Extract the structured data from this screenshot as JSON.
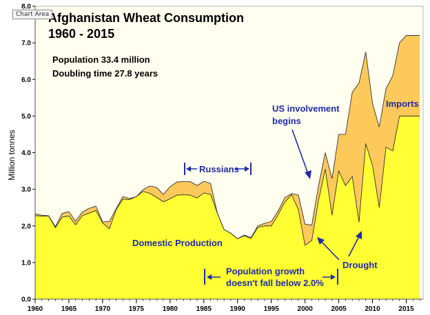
{
  "tooltip": "Chart Area",
  "chart_data": {
    "type": "area",
    "title_line1": "Afghanistan Wheat Consumption",
    "title_line2": "1960 - 2015",
    "stat_population": "Population  33.4 million",
    "stat_doubling": "Doubling time 27.8 years",
    "ylabel": "Million tonnes",
    "xlabel": "",
    "xlim": [
      1960,
      2017.5
    ],
    "ylim": [
      0,
      8
    ],
    "x_ticks": [
      1960,
      1965,
      1970,
      1975,
      1980,
      1985,
      1990,
      1995,
      2000,
      2005,
      2010,
      2015
    ],
    "y_ticks": [
      "0.0",
      "1.0",
      "2.0",
      "3.0",
      "4.0",
      "5.0",
      "6.0",
      "7.0",
      "8.0"
    ],
    "x": [
      1960,
      1961,
      1962,
      1963,
      1964,
      1965,
      1966,
      1967,
      1968,
      1969,
      1970,
      1971,
      1972,
      1973,
      1974,
      1975,
      1976,
      1977,
      1978,
      1979,
      1980,
      1981,
      1982,
      1983,
      1984,
      1985,
      1986,
      1987,
      1988,
      1989,
      1990,
      1991,
      1992,
      1993,
      1994,
      1995,
      1996,
      1997,
      1998,
      1999,
      2000,
      2001,
      2002,
      2003,
      2004,
      2005,
      2006,
      2007,
      2008,
      2009,
      2010,
      2011,
      2012,
      2013,
      2014,
      2015,
      2016,
      2017
    ],
    "series": [
      {
        "name": "Domestic Production",
        "color": "#ffff33",
        "values": [
          2.28,
          2.27,
          2.27,
          1.95,
          2.24,
          2.27,
          2.03,
          2.28,
          2.35,
          2.42,
          2.08,
          1.92,
          2.44,
          2.73,
          2.72,
          2.8,
          2.94,
          2.89,
          2.78,
          2.66,
          2.74,
          2.84,
          2.85,
          2.84,
          2.76,
          2.9,
          2.86,
          2.35,
          1.9,
          1.8,
          1.65,
          1.73,
          1.66,
          1.96,
          2.0,
          2.0,
          2.3,
          2.65,
          2.85,
          2.45,
          1.47,
          1.6,
          2.7,
          3.55,
          2.29,
          3.5,
          3.1,
          3.35,
          2.1,
          4.25,
          3.65,
          2.5,
          4.15,
          4.05,
          5.0,
          5.0,
          5.0,
          5.0
        ]
      },
      {
        "name": "Imports",
        "color": "#fcc95a",
        "values": [
          0.05,
          0.02,
          0.01,
          0.03,
          0.1,
          0.12,
          0.1,
          0.1,
          0.13,
          0.12,
          0.03,
          0.2,
          0.03,
          0.07,
          0.03,
          0.0,
          0.05,
          0.2,
          0.27,
          0.2,
          0.33,
          0.36,
          0.36,
          0.37,
          0.34,
          0.32,
          0.3,
          0.0,
          0.0,
          0.0,
          0.0,
          0.02,
          0.02,
          0.04,
          0.07,
          0.12,
          0.1,
          0.12,
          0.03,
          0.4,
          0.58,
          0.42,
          0.4,
          0.45,
          1.0,
          1.0,
          1.4,
          2.3,
          3.8,
          2.5,
          1.7,
          2.2,
          1.6,
          2.05,
          2.0,
          2.2,
          2.2,
          2.2
        ]
      }
    ],
    "annotations": {
      "russians": "Russians",
      "us_line1": "US involvement",
      "us_line2": "begins",
      "imports": "Imports",
      "domestic": "Domestic Production",
      "pop_line1": "Population  growth",
      "pop_line2": "doesn't  fall below 2.0%",
      "drought": "Drought"
    },
    "grid": false,
    "legend": "none"
  },
  "colors": {
    "plot_bg": "#fffff0",
    "annotation": "#1f2aa8",
    "outline": "#333333"
  }
}
